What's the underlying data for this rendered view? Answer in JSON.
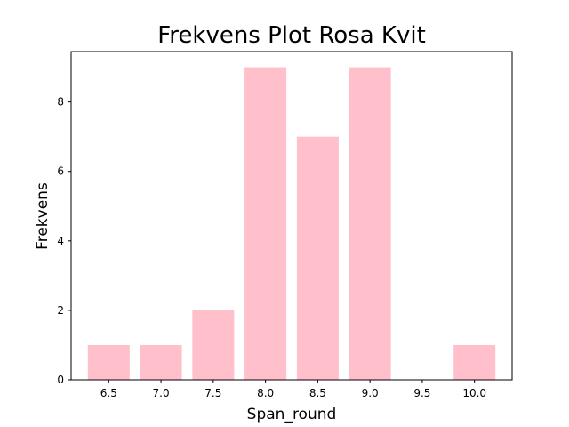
{
  "chart_data": {
    "type": "bar",
    "title": "Frekvens Plot Rosa Kvit",
    "xlabel": "Span_round",
    "ylabel": "Frekvens",
    "x": [
      6.5,
      7.0,
      7.5,
      8.0,
      8.5,
      9.0,
      10.0
    ],
    "values": [
      1,
      1,
      2,
      9,
      7,
      9,
      1
    ],
    "bar_width": 0.4,
    "xlim": [
      6.14,
      10.36
    ],
    "ylim": [
      0,
      9.45
    ],
    "xticks": [
      6.5,
      7.0,
      7.5,
      8.0,
      8.5,
      9.0,
      9.5,
      10.0
    ],
    "xtick_labels": [
      "6.5",
      "7.0",
      "7.5",
      "8.0",
      "8.5",
      "9.0",
      "9.5",
      "10.0"
    ],
    "yticks": [
      0,
      2,
      4,
      6,
      8
    ],
    "ytick_labels": [
      "0",
      "2",
      "4",
      "6",
      "8"
    ],
    "bar_color": "#ffc0cb",
    "grid": false,
    "legend": "none"
  }
}
